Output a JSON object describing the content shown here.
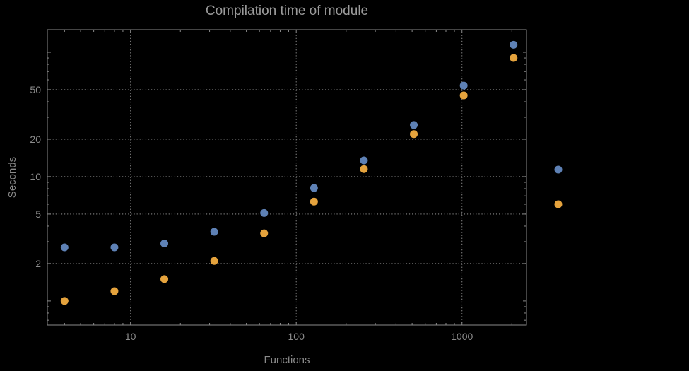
{
  "colors": {
    "background": "#000000",
    "title": "#9b9b9b",
    "text": "#8a8a8a",
    "grid": "#7d7d7d",
    "frame": "#8a8a8a",
    "series_blue": "#5e81b5",
    "series_orange": "#e5a33d"
  },
  "chart_data": {
    "type": "scatter",
    "title": "Compilation time of module",
    "xlabel": "Functions",
    "ylabel": "Seconds",
    "x_scale": "log",
    "y_scale": "log",
    "grid": true,
    "x": [
      4,
      8,
      16,
      32,
      64,
      128,
      256,
      512,
      1024,
      2048
    ],
    "series": [
      {
        "name": "series-blue",
        "color": "#5e81b5",
        "values": [
          2.7,
          2.7,
          2.9,
          3.6,
          5.1,
          8.1,
          13.5,
          26,
          54,
          115
        ]
      },
      {
        "name": "series-orange",
        "color": "#e5a33d",
        "values": [
          1.0,
          1.2,
          1.5,
          2.1,
          3.5,
          6.3,
          11.5,
          22,
          45,
          90
        ]
      }
    ],
    "x_ticks": [
      10,
      100,
      1000
    ],
    "y_ticks": [
      2,
      5,
      10,
      20,
      50
    ],
    "x_range": [
      3.15,
      2450
    ],
    "y_range": [
      0.64,
      152
    ],
    "legend": {
      "position": "right-outside",
      "entries": [
        {
          "series": "series-blue",
          "label": ""
        },
        {
          "series": "series-orange",
          "label": ""
        }
      ]
    }
  }
}
